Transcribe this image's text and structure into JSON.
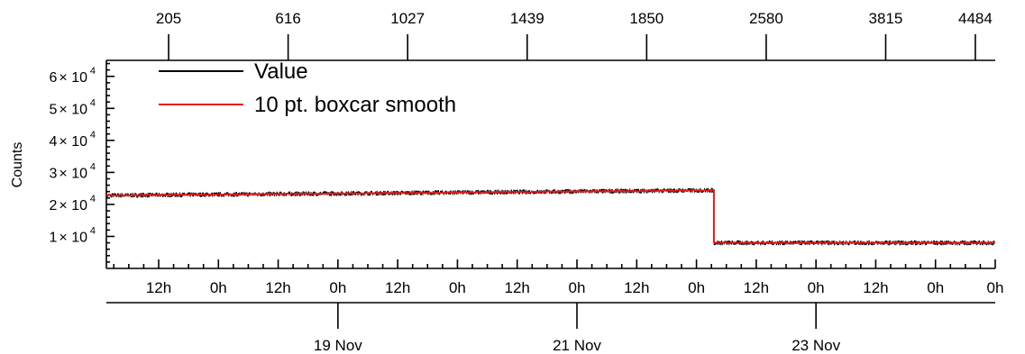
{
  "chart_data": {
    "type": "line",
    "ylabel": "Counts",
    "y_ticks": [
      {
        "value": 10000,
        "mantissa": "1",
        "exp": "4"
      },
      {
        "value": 20000,
        "mantissa": "2",
        "exp": "4"
      },
      {
        "value": 30000,
        "mantissa": "3",
        "exp": "4"
      },
      {
        "value": 40000,
        "mantissa": "4",
        "exp": "4"
      },
      {
        "value": 50000,
        "mantissa": "5",
        "exp": "4"
      },
      {
        "value": 60000,
        "mantissa": "6",
        "exp": "4"
      }
    ],
    "ylim": [
      0,
      65000
    ],
    "xlim_hours": [
      -10.5,
      168
    ],
    "hour_ticks": [
      {
        "hour": 0,
        "label": "12h"
      },
      {
        "hour": 12,
        "label": "0h"
      },
      {
        "hour": 24,
        "label": "12h"
      },
      {
        "hour": 36,
        "label": "0h"
      },
      {
        "hour": 48,
        "label": "12h"
      },
      {
        "hour": 60,
        "label": "0h"
      },
      {
        "hour": 72,
        "label": "12h"
      },
      {
        "hour": 84,
        "label": "0h"
      },
      {
        "hour": 96,
        "label": "12h"
      },
      {
        "hour": 108,
        "label": "0h"
      },
      {
        "hour": 120,
        "label": "12h"
      },
      {
        "hour": 132,
        "label": "0h"
      },
      {
        "hour": 144,
        "label": "12h"
      },
      {
        "hour": 156,
        "label": "0h"
      },
      {
        "hour": 168,
        "label": "0h"
      }
    ],
    "date_ticks": [
      {
        "hour": 36,
        "label": "19 Nov"
      },
      {
        "hour": 84,
        "label": "21 Nov"
      },
      {
        "hour": 132,
        "label": "23 Nov"
      }
    ],
    "top_ticks": [
      {
        "hour": 2,
        "label": "205"
      },
      {
        "hour": 26,
        "label": "616"
      },
      {
        "hour": 50,
        "label": "1027"
      },
      {
        "hour": 74,
        "label": "1439"
      },
      {
        "hour": 98,
        "label": "1850"
      },
      {
        "hour": 122,
        "label": "2580"
      },
      {
        "hour": 146,
        "label": "3815"
      },
      {
        "hour": 164,
        "label": "4484"
      }
    ],
    "series": [
      {
        "name": "Value",
        "color": "#000000",
        "noise_amplitude": 700,
        "segments": [
          {
            "from_hour": -10.5,
            "to_hour": 111.5,
            "start_value": 22800,
            "end_value": 24400
          },
          {
            "from_hour": 111.5,
            "to_hour": 168,
            "start_value": 8000,
            "end_value": 8000
          }
        ]
      },
      {
        "name": "10 pt. boxcar smooth",
        "color": "#e31a1c",
        "noise_amplitude": 150,
        "segments": [
          {
            "from_hour": -10.5,
            "to_hour": 111.5,
            "start_value": 22800,
            "end_value": 24400
          },
          {
            "from_hour": 111.5,
            "to_hour": 168,
            "start_value": 8000,
            "end_value": 8000
          }
        ]
      }
    ],
    "legend": [
      {
        "label": "Value",
        "color": "#000000"
      },
      {
        "label": "10 pt. boxcar smooth",
        "color": "#e31a1c"
      }
    ],
    "legend_position": "top-left",
    "grid": false
  }
}
